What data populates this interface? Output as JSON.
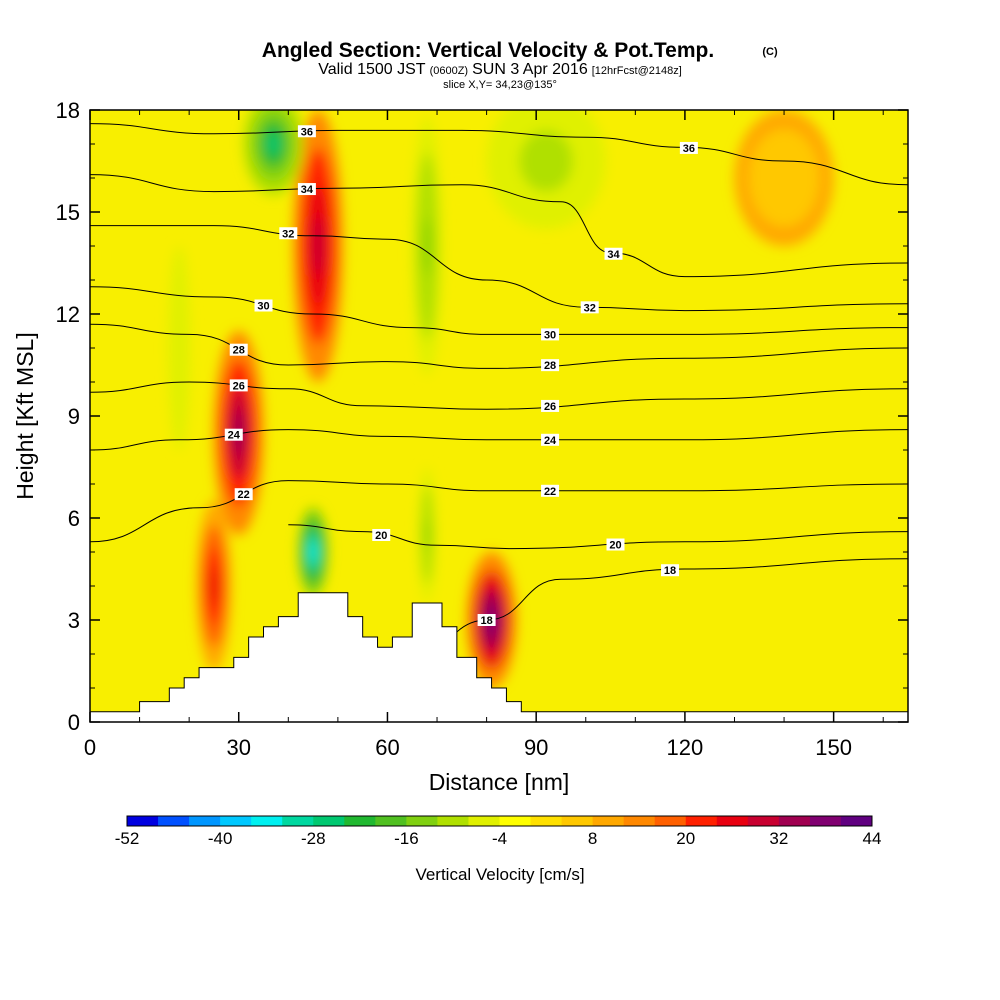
{
  "title": {
    "main": "Angled Section: Vertical Velocity & Pot.Temp.",
    "mark": "(C)",
    "valid_prefix": "Valid 1500 JST",
    "valid_utc": "(0600Z)",
    "valid_date": "SUN 3 Apr 2016",
    "forecast": "[12hrFcst@2148z]",
    "slice": "slice X,Y= 34,23@135°"
  },
  "chart_data": {
    "type": "heatmap",
    "xlabel": "Distance [nm]",
    "ylabel": "Height [Kft MSL]",
    "xlim": [
      0,
      165
    ],
    "ylim": [
      0,
      18
    ],
    "x_ticks": [
      "0",
      "30",
      "60",
      "90",
      "120",
      "150"
    ],
    "y_ticks": [
      "0",
      "3",
      "6",
      "9",
      "12",
      "15",
      "18"
    ],
    "terrain_profile": [
      [
        0,
        0.3
      ],
      [
        10,
        0.3
      ],
      [
        10,
        0.6
      ],
      [
        16,
        0.6
      ],
      [
        16,
        1.0
      ],
      [
        19,
        1.0
      ],
      [
        19,
        1.3
      ],
      [
        22,
        1.3
      ],
      [
        22,
        1.6
      ],
      [
        29,
        1.6
      ],
      [
        29,
        1.9
      ],
      [
        32,
        1.9
      ],
      [
        32,
        2.5
      ],
      [
        35,
        2.5
      ],
      [
        35,
        2.8
      ],
      [
        38,
        2.8
      ],
      [
        38,
        3.1
      ],
      [
        42,
        3.1
      ],
      [
        42,
        3.8
      ],
      [
        52,
        3.8
      ],
      [
        52,
        3.1
      ],
      [
        55,
        3.1
      ],
      [
        55,
        2.5
      ],
      [
        58,
        2.5
      ],
      [
        58,
        2.2
      ],
      [
        61,
        2.2
      ],
      [
        61,
        2.5
      ],
      [
        65,
        2.5
      ],
      [
        65,
        3.5
      ],
      [
        71,
        3.5
      ],
      [
        71,
        2.8
      ],
      [
        74,
        2.8
      ],
      [
        74,
        1.9
      ],
      [
        78,
        1.9
      ],
      [
        78,
        1.3
      ],
      [
        81,
        1.3
      ],
      [
        81,
        1.0
      ],
      [
        84,
        1.0
      ],
      [
        84,
        0.6
      ],
      [
        87,
        0.6
      ],
      [
        87,
        0.3
      ],
      [
        165,
        0.3
      ]
    ],
    "vertical_velocity_cells": [
      {
        "x": 30,
        "y": 8.5,
        "rx": 5,
        "ry": 3,
        "value": 40
      },
      {
        "x": 25,
        "y": 4.0,
        "rx": 3.5,
        "ry": 2.5,
        "value": 32
      },
      {
        "x": 46,
        "y": 14.0,
        "rx": 5,
        "ry": 4.0,
        "value": 36
      },
      {
        "x": 81,
        "y": 3.0,
        "rx": 5,
        "ry": 2.0,
        "value": 44
      },
      {
        "x": 45,
        "y": 5.0,
        "rx": 3,
        "ry": 1.3,
        "value": -40
      },
      {
        "x": 37,
        "y": 17.0,
        "rx": 6,
        "ry": 1.5,
        "value": -28
      },
      {
        "x": 68,
        "y": 14.0,
        "rx": 3,
        "ry": 3.8,
        "value": -16
      },
      {
        "x": 68,
        "y": 5.5,
        "rx": 1.7,
        "ry": 2.0,
        "value": -16
      },
      {
        "x": 92,
        "y": 16.5,
        "rx": 12,
        "ry": 2.0,
        "value": -12
      },
      {
        "x": 140,
        "y": 16.0,
        "rx": 10,
        "ry": 2.0,
        "value": 8
      },
      {
        "x": 18,
        "y": 11.0,
        "rx": 2.2,
        "ry": 3.0,
        "value": -8
      }
    ],
    "theta_contours": [
      {
        "level": 18,
        "label": "18",
        "points": [
          [
            60,
            0.8
          ],
          [
            80,
            3.0
          ],
          [
            95,
            4.2
          ],
          [
            120,
            4.5
          ],
          [
            165,
            4.8
          ]
        ]
      },
      {
        "level": 20,
        "label": "20",
        "points": [
          [
            40,
            5.8
          ],
          [
            55,
            5.6
          ],
          [
            70,
            5.2
          ],
          [
            85,
            5.1
          ],
          [
            120,
            5.3
          ],
          [
            165,
            5.6
          ]
        ]
      },
      {
        "level": 22,
        "label": "22",
        "points": [
          [
            0,
            5.3
          ],
          [
            22,
            6.3
          ],
          [
            40,
            7.1
          ],
          [
            60,
            7.0
          ],
          [
            80,
            6.8
          ],
          [
            120,
            6.8
          ],
          [
            165,
            7.0
          ]
        ]
      },
      {
        "level": 24,
        "label": "24",
        "points": [
          [
            0,
            8.0
          ],
          [
            18,
            8.3
          ],
          [
            40,
            8.6
          ],
          [
            60,
            8.4
          ],
          [
            80,
            8.3
          ],
          [
            120,
            8.3
          ],
          [
            165,
            8.6
          ]
        ]
      },
      {
        "level": 26,
        "label": "26",
        "points": [
          [
            0,
            9.7
          ],
          [
            20,
            10.0
          ],
          [
            40,
            9.8
          ],
          [
            55,
            9.3
          ],
          [
            80,
            9.2
          ],
          [
            120,
            9.5
          ],
          [
            165,
            9.8
          ]
        ]
      },
      {
        "level": 28,
        "label": "28",
        "points": [
          [
            0,
            11.7
          ],
          [
            20,
            11.4
          ],
          [
            40,
            10.5
          ],
          [
            60,
            10.6
          ],
          [
            80,
            10.4
          ],
          [
            120,
            10.7
          ],
          [
            165,
            11.0
          ]
        ]
      },
      {
        "level": 30,
        "label": "30",
        "points": [
          [
            0,
            12.8
          ],
          [
            25,
            12.5
          ],
          [
            45,
            12.0
          ],
          [
            65,
            11.6
          ],
          [
            80,
            11.4
          ],
          [
            120,
            11.4
          ],
          [
            165,
            11.6
          ]
        ]
      },
      {
        "level": 32,
        "label": "32",
        "points": [
          [
            0,
            14.6
          ],
          [
            25,
            14.6
          ],
          [
            45,
            14.3
          ],
          [
            60,
            14.2
          ],
          [
            80,
            13.0
          ],
          [
            100,
            12.2
          ],
          [
            120,
            12.1
          ],
          [
            165,
            12.3
          ]
        ]
      },
      {
        "level": 34,
        "label": "34",
        "points": [
          [
            0,
            16.1
          ],
          [
            25,
            15.6
          ],
          [
            50,
            15.7
          ],
          [
            75,
            15.8
          ],
          [
            95,
            15.3
          ],
          [
            105,
            13.8
          ],
          [
            120,
            13.1
          ],
          [
            165,
            13.5
          ]
        ]
      },
      {
        "level": 36,
        "label": "36",
        "points": [
          [
            0,
            17.6
          ],
          [
            25,
            17.3
          ],
          [
            50,
            17.4
          ],
          [
            75,
            17.4
          ],
          [
            100,
            17.2
          ],
          [
            120,
            16.9
          ],
          [
            140,
            16.5
          ],
          [
            165,
            15.8
          ]
        ]
      }
    ],
    "colorbar": {
      "label": "Vertical Velocity [cm/s]",
      "min": -52,
      "max": 44,
      "step": 4,
      "tick_labels": [
        "-52",
        "-40",
        "-28",
        "-16",
        "-4",
        "8",
        "20",
        "32",
        "44"
      ],
      "colors": [
        "#0000e0",
        "#0050ff",
        "#0096ff",
        "#00c8ff",
        "#00f0f0",
        "#00d8a0",
        "#00c870",
        "#20b830",
        "#50c020",
        "#80d010",
        "#b0e000",
        "#e0f000",
        "#ffff00",
        "#ffe000",
        "#ffc800",
        "#ffa800",
        "#ff8800",
        "#ff6000",
        "#ff2000",
        "#e80010",
        "#c80030",
        "#a00050",
        "#800070",
        "#600080"
      ]
    }
  }
}
